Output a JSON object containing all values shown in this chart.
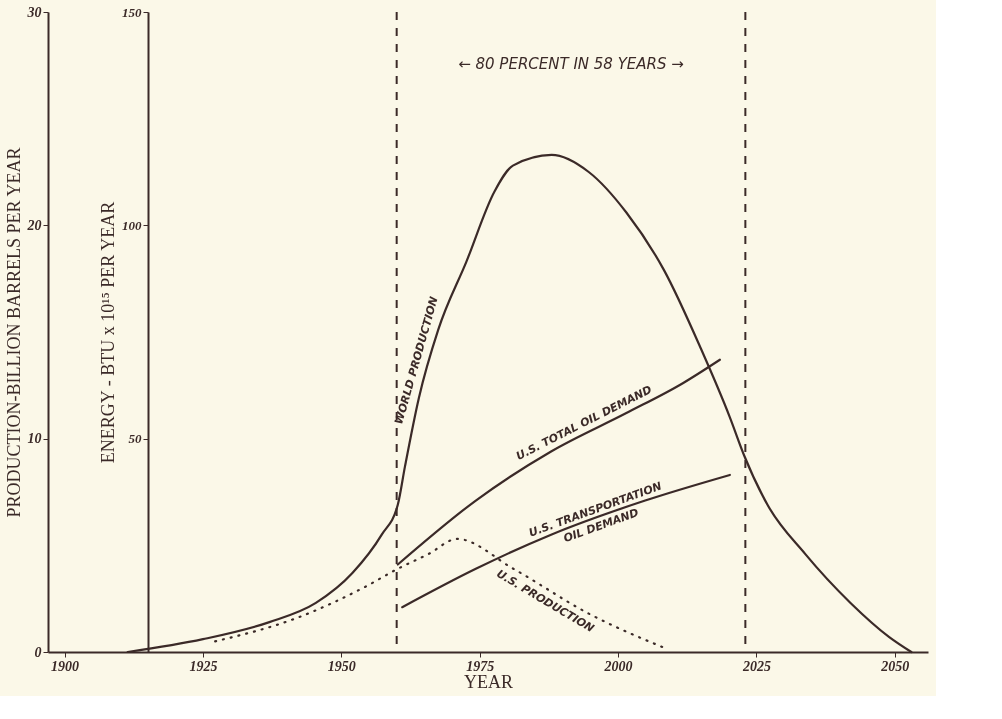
{
  "chart_data": {
    "type": "line",
    "xlabel": "YEAR",
    "ylabel": "PRODUCTION-BILLION BARRELS PER YEAR",
    "y2label": "ENERGY - BTU x 10¹⁵ PER YEAR",
    "xlim": [
      1897,
      2056
    ],
    "xticks": [
      1900,
      1925,
      1950,
      1975,
      2000,
      2025,
      2050
    ],
    "ylim": [
      0,
      30
    ],
    "yticks": [
      0,
      10,
      20,
      30
    ],
    "y2lim": [
      0,
      150
    ],
    "y2ticks": [
      50,
      100,
      150
    ],
    "grid": false,
    "marker": "none",
    "series": [
      {
        "name": "WORLD PRODUCTION",
        "color": "#3b2a28",
        "line_style": "solid",
        "x": [
          1911.4,
          1925,
          1937,
          1945.4,
          1952,
          1957.3,
          1960.2,
          1961.5,
          1964,
          1967.5,
          1972.6,
          1977.7,
          1981,
          1988,
          1994.7,
          2001.5,
          2008.3,
          2015,
          2020.2,
          2022.8,
          2027,
          2033.8,
          2042,
          2049,
          2053
        ],
        "values": [
          0,
          0.6,
          1.4,
          2.3,
          3.7,
          5.5,
          6.9,
          8.7,
          11.9,
          15.1,
          18.3,
          21.6,
          22.8,
          23.3,
          22.5,
          20.6,
          17.9,
          14.2,
          11,
          9.2,
          6.9,
          4.6,
          2.3,
          0.7,
          0
        ]
      },
      {
        "name": "U.S. TOTAL OIL DEMAND",
        "color": "#3b2a28",
        "line_style": "solid",
        "x": [
          1960.2,
          1974.3,
          1987.9,
          2001.5,
          2011.7,
          2018.4
        ],
        "values": [
          4.1,
          7.1,
          9.4,
          11.2,
          12.6,
          13.7
        ]
      },
      {
        "name": "U.S. TRANSPORTATION OIL DEMAND",
        "color": "#3b2a28",
        "line_style": "solid",
        "x": [
          1961,
          1974.3,
          1987.9,
          2004.9,
          2020.2
        ],
        "values": [
          2.1,
          3.9,
          5.5,
          7.1,
          8.3
        ]
      },
      {
        "name": "U.S. PRODUCTION",
        "color": "#3b2a28",
        "line_style": "dotted",
        "x": [
          1927.2,
          1942,
          1953.9,
          1960.2,
          1965.8,
          1970.9,
          1981.1,
          1994.7,
          2008.3
        ],
        "values": [
          0.5,
          1.6,
          3.0,
          3.9,
          4.6,
          5.3,
          3.9,
          1.8,
          0.2
        ]
      }
    ],
    "ref_lines": [
      {
        "axis": "x",
        "value": 1960,
        "label": null,
        "color": "#3b2a28",
        "line_style": "dashed"
      },
      {
        "axis": "x",
        "value": 2023,
        "label": null,
        "color": "#3b2a28",
        "line_style": "dashed"
      }
    ],
    "annotations": [
      "← 80 PERCENT IN 58 YEARS →"
    ]
  }
}
